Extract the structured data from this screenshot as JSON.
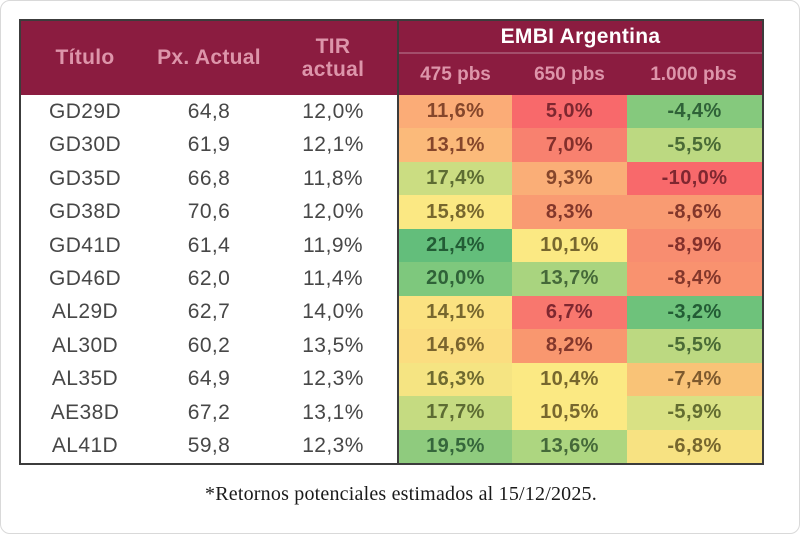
{
  "colors": {
    "header_bg": "#8B1C40",
    "header_text": "#DD95AA",
    "embi_title_text": "#FFFFFF",
    "table_border": "#3C3C3C",
    "body_text": "#474747"
  },
  "header": {
    "titulo": "Título",
    "px_actual": "Px. Actual",
    "tir_line1": "TIR",
    "tir_line2": "actual",
    "embi_title": "EMBI Argentina",
    "scenarios": [
      "475 pbs",
      "650 pbs",
      "1.000 pbs"
    ]
  },
  "footnote": "*Retornos potenciales estimados al 15/12/2025.",
  "chart_data": {
    "type": "table",
    "title": "EMBI Argentina",
    "columns": [
      "Título",
      "Px. Actual",
      "TIR actual",
      "475 pbs",
      "650 pbs",
      "1.000 pbs"
    ],
    "note": "heatmap-colored potential returns per EMBI spread scenario"
  },
  "rows": [
    {
      "titulo": "GD29D",
      "px": "64,8",
      "tir": "12,0%",
      "scenarios": [
        {
          "v": "11,6%",
          "bg": "#FBAC77",
          "fg": "#85462B"
        },
        {
          "v": "5,0%",
          "bg": "#F8696B",
          "fg": "#7E2730"
        },
        {
          "v": "-4,4%",
          "bg": "#85C97D",
          "fg": "#2F6238"
        }
      ]
    },
    {
      "titulo": "GD30D",
      "px": "61,9",
      "tir": "12,1%",
      "scenarios": [
        {
          "v": "13,1%",
          "bg": "#FBBA7A",
          "fg": "#85462B"
        },
        {
          "v": "7,0%",
          "bg": "#F8816F",
          "fg": "#832F2B"
        },
        {
          "v": "-5,5%",
          "bg": "#BCD981",
          "fg": "#4A6B36"
        }
      ]
    },
    {
      "titulo": "GD35D",
      "px": "66,8",
      "tir": "11,8%",
      "scenarios": [
        {
          "v": "17,4%",
          "bg": "#CBDD82",
          "fg": "#5D6C33"
        },
        {
          "v": "9,3%",
          "bg": "#FAAE77",
          "fg": "#85462B"
        },
        {
          "v": "-10,0%",
          "bg": "#F8696B",
          "fg": "#7E2730"
        }
      ]
    },
    {
      "titulo": "GD38D",
      "px": "70,6",
      "tir": "12,0%",
      "scenarios": [
        {
          "v": "15,8%",
          "bg": "#FBE883",
          "fg": "#77672E"
        },
        {
          "v": "8,3%",
          "bg": "#F99B72",
          "fg": "#83372B"
        },
        {
          "v": "-8,6%",
          "bg": "#F99B72",
          "fg": "#83372B"
        }
      ]
    },
    {
      "titulo": "GD41D",
      "px": "61,4",
      "tir": "11,9%",
      "scenarios": [
        {
          "v": "21,4%",
          "bg": "#63BE7B",
          "fg": "#225C35"
        },
        {
          "v": "10,1%",
          "bg": "#FBE983",
          "fg": "#77672E"
        },
        {
          "v": "-8,9%",
          "bg": "#F88D70",
          "fg": "#83302B"
        }
      ]
    },
    {
      "titulo": "GD46D",
      "px": "62,0",
      "tir": "11,4%",
      "scenarios": [
        {
          "v": "20,0%",
          "bg": "#7EC87D",
          "fg": "#2F6238"
        },
        {
          "v": "13,7%",
          "bg": "#A9D47F",
          "fg": "#456939"
        },
        {
          "v": "-8,4%",
          "bg": "#F9926F",
          "fg": "#83372B"
        }
      ]
    },
    {
      "titulo": "AL29D",
      "px": "62,7",
      "tir": "14,0%",
      "scenarios": [
        {
          "v": "14,1%",
          "bg": "#FBE281",
          "fg": "#77672E"
        },
        {
          "v": "6,7%",
          "bg": "#F8776E",
          "fg": "#7E2730"
        },
        {
          "v": "-3,2%",
          "bg": "#6EC27B",
          "fg": "#225C35"
        }
      ]
    },
    {
      "titulo": "AL30D",
      "px": "60,2",
      "tir": "13,5%",
      "scenarios": [
        {
          "v": "14,6%",
          "bg": "#FBDD80",
          "fg": "#7A642E"
        },
        {
          "v": "8,2%",
          "bg": "#F9976F",
          "fg": "#83372B"
        },
        {
          "v": "-5,5%",
          "bg": "#BCD981",
          "fg": "#4A6B36"
        }
      ]
    },
    {
      "titulo": "AL35D",
      "px": "64,9",
      "tir": "12,3%",
      "scenarios": [
        {
          "v": "16,3%",
          "bg": "#F5E482",
          "fg": "#6F6A30"
        },
        {
          "v": "10,4%",
          "bg": "#FBE983",
          "fg": "#77672E"
        },
        {
          "v": "-7,4%",
          "bg": "#F9C377",
          "fg": "#7E5A2E"
        }
      ]
    },
    {
      "titulo": "AE38D",
      "px": "67,2",
      "tir": "13,1%",
      "scenarios": [
        {
          "v": "17,7%",
          "bg": "#C5DB81",
          "fg": "#5D6C33"
        },
        {
          "v": "10,5%",
          "bg": "#FBE983",
          "fg": "#77672E"
        },
        {
          "v": "-5,9%",
          "bg": "#D9E184",
          "fg": "#636D31"
        }
      ]
    },
    {
      "titulo": "AL41D",
      "px": "59,8",
      "tir": "12,3%",
      "scenarios": [
        {
          "v": "19,5%",
          "bg": "#8FCB7E",
          "fg": "#35663B"
        },
        {
          "v": "13,6%",
          "bg": "#ADD680",
          "fg": "#456939"
        },
        {
          "v": "-6,8%",
          "bg": "#F7E282",
          "fg": "#77672E"
        }
      ]
    }
  ]
}
